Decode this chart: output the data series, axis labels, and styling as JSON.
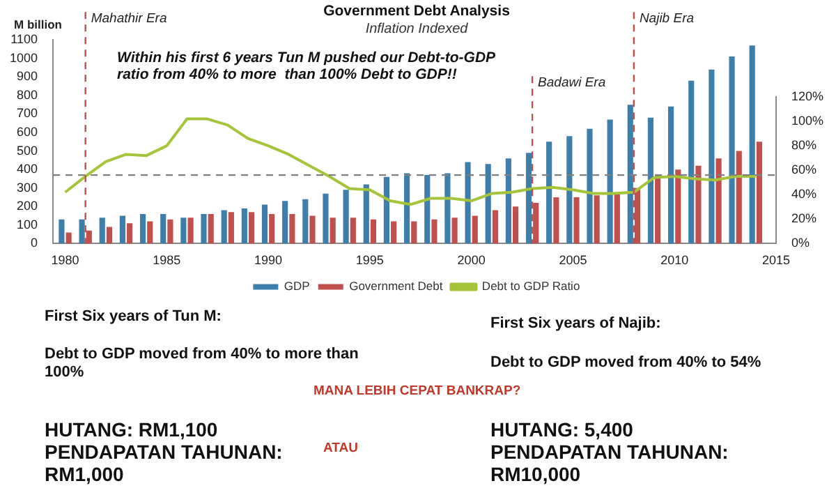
{
  "chart_data": {
    "type": "bar",
    "title": "Government Debt Analysis",
    "subtitle": "Inflation Indexed",
    "ylabel": "M billion",
    "x": [
      1980,
      1981,
      1982,
      1983,
      1984,
      1985,
      1986,
      1987,
      1988,
      1989,
      1990,
      1991,
      1992,
      1993,
      1994,
      1995,
      1996,
      1997,
      1998,
      1999,
      2000,
      2001,
      2002,
      2003,
      2004,
      2005,
      2006,
      2007,
      2008,
      2009,
      2010,
      2011,
      2012,
      2013,
      2014
    ],
    "xlim": [
      1979.4,
      2015
    ],
    "xticks": [
      1980,
      1985,
      1990,
      1995,
      2000,
      2005,
      2010,
      2015
    ],
    "series": [
      {
        "name": "GDP",
        "color": "#3e7eab",
        "values": [
          130,
          130,
          140,
          150,
          160,
          160,
          140,
          160,
          180,
          190,
          210,
          230,
          240,
          270,
          290,
          320,
          360,
          380,
          370,
          380,
          440,
          430,
          460,
          490,
          550,
          580,
          620,
          670,
          750,
          680,
          740,
          880,
          940,
          1010,
          1070
        ]
      },
      {
        "name": "Government Debt",
        "color": "#c0504d",
        "values": [
          60,
          70,
          90,
          110,
          120,
          130,
          140,
          160,
          170,
          170,
          160,
          160,
          150,
          140,
          140,
          130,
          120,
          120,
          130,
          140,
          150,
          180,
          200,
          220,
          250,
          250,
          260,
          270,
          300,
          370,
          400,
          420,
          460,
          500,
          550
        ]
      },
      {
        "name": "Debt to GDP Ratio",
        "type": "line",
        "axis": "y2",
        "color": "#a5c43a",
        "values": [
          42,
          55,
          67,
          73,
          72,
          80,
          102,
          102,
          97,
          86,
          80,
          73,
          64,
          55,
          45,
          44,
          35,
          32,
          37,
          37,
          35,
          41,
          42,
          45,
          46,
          44,
          41,
          41,
          42,
          54,
          55,
          53,
          52,
          55,
          55
        ]
      }
    ],
    "ylim": [
      0,
      1100
    ],
    "yticks": [
      0,
      100,
      200,
      300,
      400,
      500,
      600,
      700,
      800,
      900,
      1000,
      1100
    ],
    "y2lim": [
      0,
      120
    ],
    "y2ticks": [
      {
        "value": 0,
        "label": "0%"
      },
      {
        "value": 20,
        "label": "20%"
      },
      {
        "value": 40,
        "label": "40%"
      },
      {
        "value": 60,
        "label": "60%"
      },
      {
        "value": 80,
        "label": "80%"
      },
      {
        "value": 100,
        "label": "100%"
      },
      {
        "value": 120,
        "label": "120%"
      }
    ],
    "ref_lines": [
      {
        "axis": "x",
        "value": 1981,
        "label": "Mahathir Era",
        "color": "#c0504d",
        "line_style": "dashed"
      },
      {
        "axis": "x",
        "value": 2003,
        "label": "Badawi Era",
        "color": "#c0504d",
        "line_style": "dashed"
      },
      {
        "axis": "x",
        "value": 2008,
        "label": "Najib Era",
        "color": "#c0504d",
        "line_style": "dashed"
      },
      {
        "axis": "y",
        "value": 370,
        "color": "#808080",
        "line_style": "dashed"
      }
    ],
    "legend": "bottom",
    "marker": "none",
    "annotations": [
      "Within his first 6 years Tun M pushed our Debt-to-GDP ratio from 40% to more  than 100% Debt to GDP!!",
      "First Six years of Tun M:",
      "Debt to GDP moved from 40% to more than 100%",
      "First Six years of Najib:",
      "Debt to GDP moved from 40% to 54%",
      "MANA LEBIH CEPAT BANKRAP?",
      "HUTANG: RM1,100",
      "PENDAPATAN TAHUNAN: RM1,000",
      "ATAU",
      "HUTANG: 5,400",
      "PENDAPATAN TAHUNAN: RM10,000"
    ]
  }
}
